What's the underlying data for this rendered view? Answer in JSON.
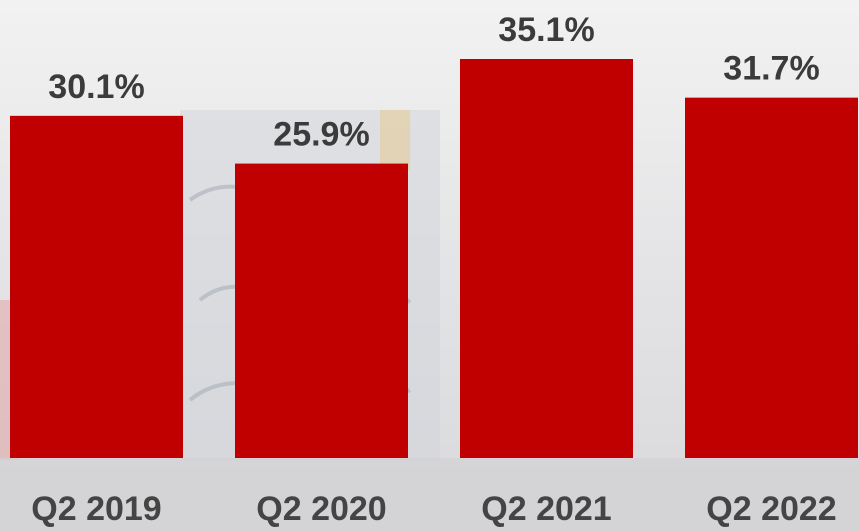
{
  "chart_data": {
    "type": "bar",
    "categories": [
      "Q2 2019",
      "Q2 2020",
      "Q2 2021",
      "Q2 2022"
    ],
    "values": [
      30.1,
      25.9,
      35.1,
      31.7
    ],
    "value_labels": [
      "30.1%",
      "25.9%",
      "35.1%",
      "31.7%"
    ],
    "color": "#c00000"
  }
}
